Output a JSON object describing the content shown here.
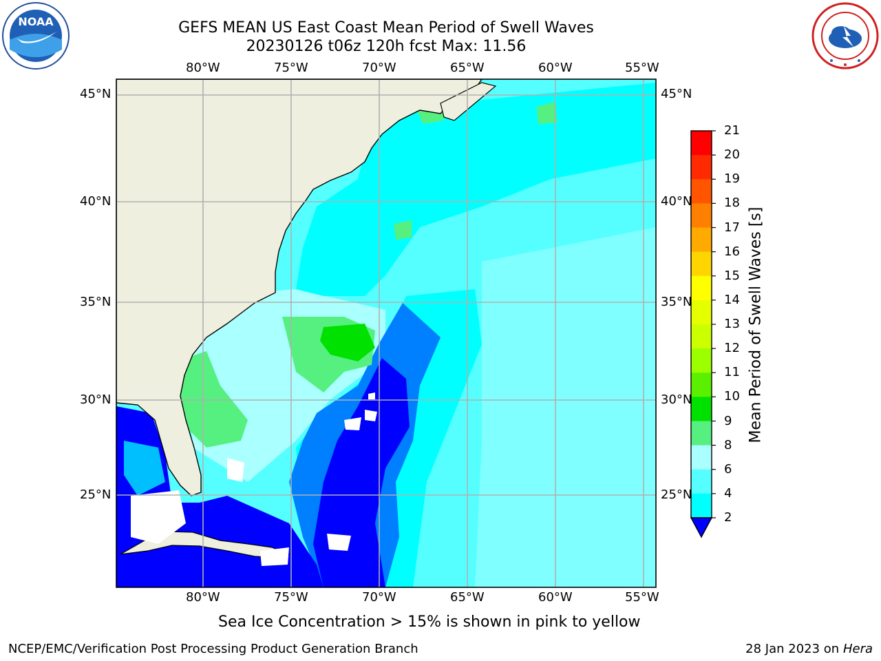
{
  "title": {
    "line1": "GEFS MEAN US East Coast Mean Period of Swell Waves",
    "line2": "20230126 t06z 120h fcst   Max: 11.56"
  },
  "logos": {
    "left": {
      "icon": "noaa-logo",
      "text": "NOAA"
    },
    "right": {
      "icon": "nws-logo"
    }
  },
  "map": {
    "lon_ticks": [
      "80°W",
      "75°W",
      "70°W",
      "65°W",
      "60°W",
      "55°W"
    ],
    "lat_ticks": [
      "45°N",
      "40°N",
      "35°N",
      "30°N",
      "25°N"
    ],
    "lon_values": [
      -80,
      -75,
      -70,
      -65,
      -60,
      -55
    ],
    "lat_values": [
      45,
      40,
      35,
      30,
      25
    ],
    "lon_range": [
      -85,
      -54.5
    ],
    "lat_range": [
      20.5,
      46
    ],
    "land_color": "#efefdf",
    "grid_color": "#b0b0b0"
  },
  "colorbar": {
    "label": "Mean Period of Swell Waves [s]",
    "ticks": [
      "21",
      "20",
      "19",
      "18",
      "17",
      "16",
      "15",
      "14",
      "13",
      "12",
      "11",
      "10",
      "9",
      "8",
      "6",
      "4",
      "2"
    ],
    "colors": [
      "#ff0000",
      "#ff2a00",
      "#ff5500",
      "#ff8000",
      "#ffaa00",
      "#ffd500",
      "#ffff00",
      "#e6ff00",
      "#ccff00",
      "#9bff00",
      "#5af000",
      "#00e100",
      "#55f07f",
      "#aaffff",
      "#55ffff",
      "#00ffff",
      "#00bfff",
      "#007fff",
      "#0000ff"
    ]
  },
  "caption": "Sea Ice Concentration > 15% is shown in pink to yellow",
  "footer": {
    "left": "NCEP/EMC/Verification Post Processing Product Generation Branch",
    "right_prefix": "28 Jan 2023 on ",
    "right_host": "Hera"
  }
}
